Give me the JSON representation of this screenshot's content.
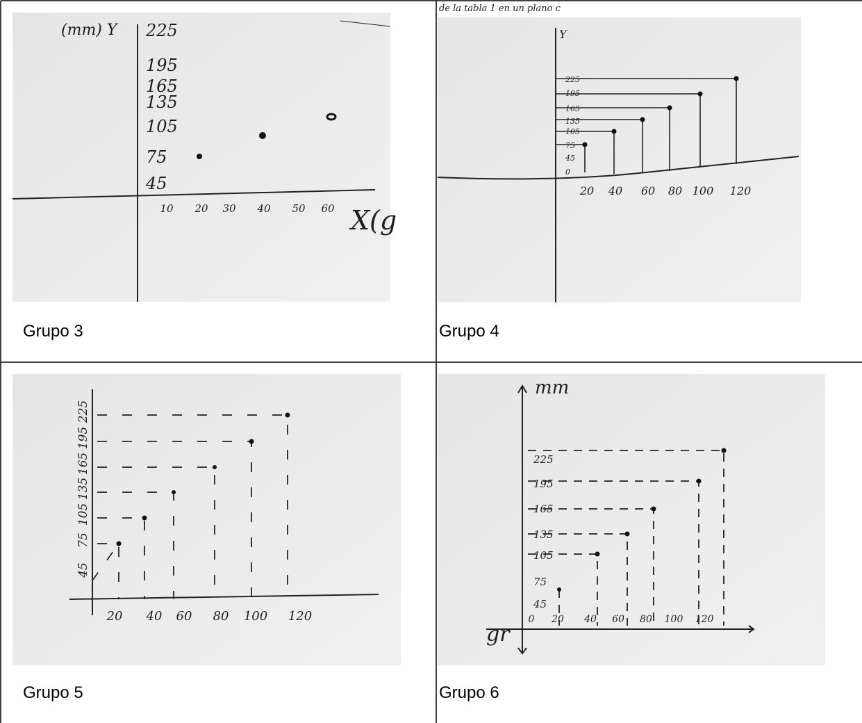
{
  "table": {
    "cells": [
      {
        "caption": "Grupo 3",
        "photo": {
          "y_axis_label": "(mm) Y",
          "x_axis_label": "X(g",
          "y_labels": [
            "225",
            "195",
            "165",
            "135",
            "105",
            "75",
            "45"
          ],
          "x_labels": [
            "10",
            "20",
            "30",
            "40",
            "50",
            "60"
          ]
        }
      },
      {
        "caption": "Grupo 4",
        "photo": {
          "top_text": "de la tabla 1 en un plano c",
          "y_axis_label": "Y",
          "y_labels": [
            "225",
            "195",
            "165",
            "135",
            "105",
            "75",
            "45",
            "0"
          ],
          "x_labels": [
            "20",
            "40",
            "60",
            "80",
            "100",
            "120"
          ]
        }
      },
      {
        "caption": "Grupo 5",
        "photo": {
          "y_labels": [
            "45",
            "75",
            "105",
            "135",
            "165",
            "195",
            "225"
          ],
          "x_labels": [
            "20",
            "40",
            "60",
            "80",
            "100",
            "120"
          ]
        }
      },
      {
        "caption": "Grupo 6",
        "photo": {
          "y_axis_label": "mm",
          "x_axis_label": "gr",
          "y_labels": [
            "225",
            "195",
            "165",
            "135",
            "105",
            "75",
            "45"
          ],
          "x_labels": [
            "0",
            "20",
            "40",
            "60",
            "80",
            "100",
            "120"
          ]
        }
      }
    ]
  }
}
